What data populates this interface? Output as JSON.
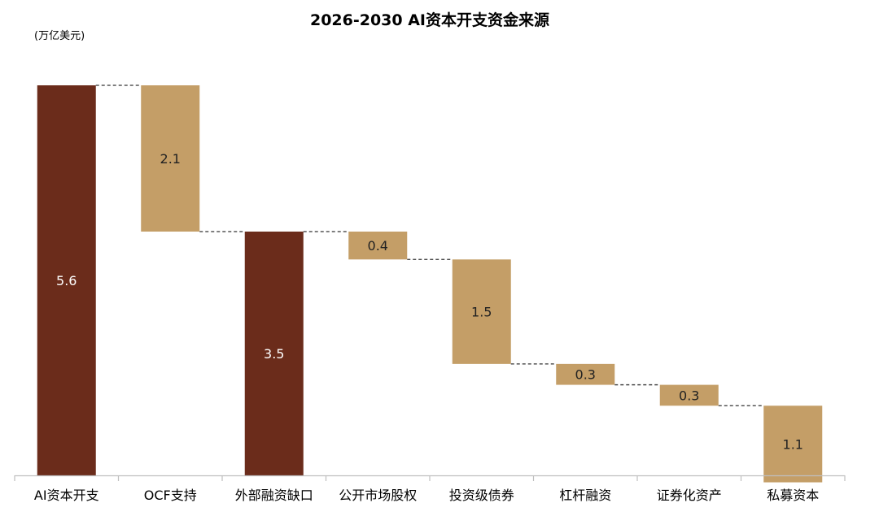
{
  "chart_data": {
    "type": "bar",
    "subtype": "waterfall",
    "title": "2026-2030 AI资本开支资金来源",
    "unit_label": "(万亿美元)",
    "categories": [
      "AI资本开支",
      "OCF支持",
      "外部融资缺口",
      "公开市场股权",
      "投资级债券",
      "杠杆融资",
      "证券化资产",
      "私募资本"
    ],
    "values": [
      5.6,
      2.1,
      3.5,
      0.4,
      1.5,
      0.3,
      0.3,
      1.1
    ],
    "value_labels": [
      "5.6",
      "2.1",
      "3.5",
      "0.4",
      "1.5",
      "0.3",
      "0.3",
      "1.1"
    ],
    "bar_kind": [
      "total",
      "decrease",
      "total",
      "decrease",
      "decrease",
      "decrease",
      "decrease",
      "decrease"
    ],
    "ylim": [
      0,
      5.6
    ],
    "grid": false,
    "connectors": true,
    "colors": {
      "total": "#6b2c1b",
      "step": "#c49e67",
      "total_label": "#ffffff",
      "step_label": "#222222",
      "axis": "#bfbfbf",
      "connector": "#333333"
    }
  }
}
